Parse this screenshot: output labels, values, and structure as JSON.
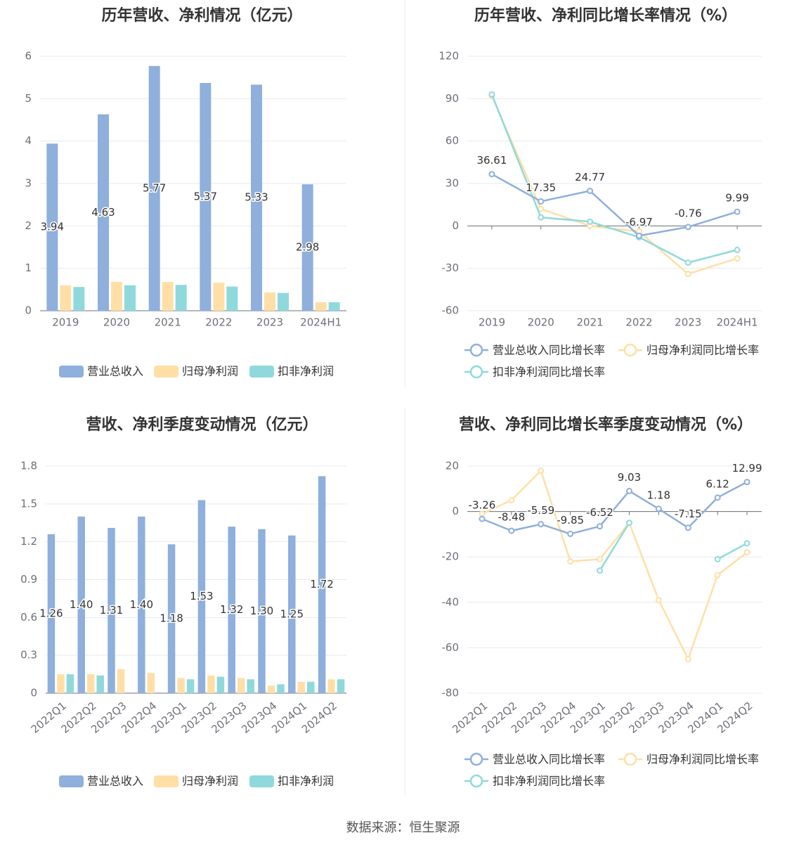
{
  "source": "数据来源：恒生聚源",
  "colors": {
    "revenue": "#8fafdc",
    "net_profit": "#ffdfa6",
    "deducted_profit": "#8fd9dc"
  },
  "chart_data": [
    {
      "type": "bar",
      "title": "历年营收、净利情况（亿元）",
      "categories": [
        "2019",
        "2020",
        "2021",
        "2022",
        "2023",
        "2024H1"
      ],
      "ylim": [
        0,
        6
      ],
      "yticks": [
        0,
        1,
        2,
        3,
        4,
        5,
        6
      ],
      "grid": true,
      "legend": "bottom",
      "series": [
        {
          "name": "营业总收入",
          "values": [
            3.94,
            4.63,
            5.77,
            5.37,
            5.33,
            2.98
          ],
          "labels": [
            "3.94",
            "4.63",
            "5.77",
            "5.37",
            "5.33",
            "2.98"
          ]
        },
        {
          "name": "归母净利润",
          "values": [
            0.6,
            0.68,
            0.68,
            0.66,
            0.43,
            0.2
          ]
        },
        {
          "name": "扣非净利润",
          "values": [
            0.56,
            0.6,
            0.61,
            0.57,
            0.42,
            0.2
          ]
        }
      ]
    },
    {
      "type": "line",
      "title": "历年营收、净利同比增长率情况（%）",
      "categories": [
        "2019",
        "2020",
        "2021",
        "2022",
        "2023",
        "2024H1"
      ],
      "ylim": [
        -60,
        120
      ],
      "yticks": [
        -60,
        -30,
        0,
        30,
        60,
        90,
        120
      ],
      "grid": true,
      "legend": "bottom",
      "series": [
        {
          "name": "营业总收入同比增长率",
          "values": [
            36.61,
            17.35,
            24.77,
            -6.97,
            -0.76,
            9.99
          ],
          "labels": [
            "36.61",
            "17.35",
            "24.77",
            "-6.97",
            "-0.76",
            "9.99"
          ]
        },
        {
          "name": "归母净利润同比增长率",
          "values": [
            92,
            12,
            0,
            -4,
            -34,
            -23
          ]
        },
        {
          "name": "扣非净利润同比增长率",
          "values": [
            93,
            6,
            3,
            -8,
            -26,
            -17
          ]
        }
      ]
    },
    {
      "type": "bar",
      "title": "营收、净利季度变动情况（亿元）",
      "categories": [
        "2022Q1",
        "2022Q2",
        "2022Q3",
        "2022Q4",
        "2023Q1",
        "2023Q2",
        "2023Q3",
        "2023Q4",
        "2024Q1",
        "2024Q2"
      ],
      "ylim": [
        0,
        1.8
      ],
      "yticks": [
        "0",
        "0.3",
        "0.6",
        "0.9",
        "1.2",
        "1.5",
        "1.8"
      ],
      "grid": true,
      "legend": "bottom",
      "series": [
        {
          "name": "营业总收入",
          "values": [
            1.26,
            1.4,
            1.31,
            1.4,
            1.18,
            1.53,
            1.32,
            1.3,
            1.25,
            1.72
          ],
          "labels": [
            "1.26",
            "1.40",
            "1.31",
            "1.40",
            "1.18",
            "1.53",
            "1.32",
            "1.30",
            "1.25",
            "1.72"
          ]
        },
        {
          "name": "归母净利润",
          "values": [
            0.15,
            0.15,
            0.19,
            0.16,
            0.12,
            0.14,
            0.12,
            0.06,
            0.09,
            0.11
          ]
        },
        {
          "name": "扣非净利润",
          "values": [
            0.15,
            0.14,
            null,
            null,
            0.11,
            0.13,
            0.11,
            0.07,
            0.09,
            0.11
          ]
        }
      ]
    },
    {
      "type": "line",
      "title": "营收、净利同比增长率季度变动情况（%）",
      "categories": [
        "2022Q1",
        "2022Q2",
        "2022Q3",
        "2022Q4",
        "2023Q1",
        "2023Q2",
        "2023Q3",
        "2023Q4",
        "2024Q1",
        "2024Q2"
      ],
      "ylim": [
        -80,
        20
      ],
      "yticks": [
        -80,
        -60,
        -40,
        -20,
        0,
        20
      ],
      "grid": true,
      "legend": "bottom",
      "series": [
        {
          "name": "营业总收入同比增长率",
          "values": [
            -3.26,
            -8.48,
            -5.59,
            -9.85,
            -6.52,
            9.03,
            1.18,
            -7.15,
            6.12,
            12.99
          ],
          "labels": [
            "-3.26",
            "-8.48",
            "-5.59",
            "-9.85",
            "-6.52",
            "9.03",
            "1.18",
            "-7.15",
            "6.12",
            "12.99"
          ]
        },
        {
          "name": "归母净利润同比增长率",
          "values": [
            -1,
            5,
            18,
            -22,
            -21,
            -5,
            -39,
            -65,
            -28,
            -18
          ]
        },
        {
          "name": "扣非净利润同比增长率",
          "values": [
            null,
            null,
            null,
            null,
            -26,
            -5,
            null,
            null,
            -21,
            -14
          ]
        }
      ]
    }
  ]
}
